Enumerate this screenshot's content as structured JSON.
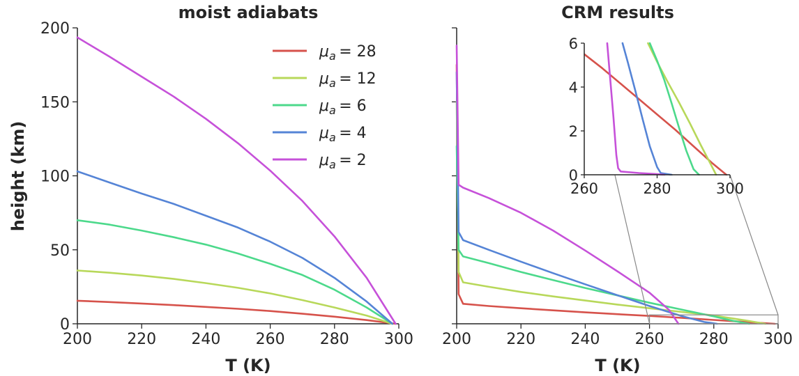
{
  "chart_data": [
    {
      "type": "line",
      "title": "moist adiabats",
      "xlabel": "T (K)",
      "ylabel": "height (km)",
      "xlim": [
        200,
        300
      ],
      "ylim": [
        0,
        200
      ],
      "xticks": [
        200,
        220,
        240,
        260,
        280,
        300
      ],
      "yticks": [
        0,
        50,
        100,
        150,
        200
      ],
      "legend_position": "top-right",
      "series": [
        {
          "name": "μa = 28",
          "legend_base": "μ",
          "legend_sub": "a",
          "legend_value": "= 28",
          "color": "#d6524b",
          "x": [
            299,
            290,
            280,
            270,
            260,
            250,
            240,
            230,
            220,
            210,
            200
          ],
          "y": [
            0,
            2.5,
            4.8,
            6.8,
            8.6,
            10.1,
            11.4,
            12.6,
            13.7,
            14.7,
            15.6
          ]
        },
        {
          "name": "μa = 12",
          "legend_base": "μ",
          "legend_sub": "a",
          "legend_value": "= 12",
          "color": "#b8d85a",
          "x": [
            298,
            290,
            280,
            270,
            260,
            250,
            240,
            230,
            220,
            210,
            200
          ],
          "y": [
            0,
            5.5,
            11,
            16,
            20.5,
            24.3,
            27.5,
            30.3,
            32.6,
            34.5,
            36
          ]
        },
        {
          "name": "μa = 6",
          "legend_base": "μ",
          "legend_sub": "a",
          "legend_value": "= 6",
          "color": "#4cd98b",
          "x": [
            298,
            290,
            280,
            270,
            260,
            250,
            240,
            230,
            220,
            210,
            200
          ],
          "y": [
            0,
            11,
            23,
            33,
            40.5,
            47.5,
            53.5,
            58.5,
            63,
            67,
            70
          ]
        },
        {
          "name": "μa = 4",
          "legend_base": "μ",
          "legend_sub": "a",
          "legend_value": "= 4",
          "color": "#5584d6",
          "x": [
            298,
            290,
            280,
            270,
            260,
            250,
            240,
            230,
            220,
            210,
            200
          ],
          "y": [
            0,
            15,
            31,
            44.5,
            55.5,
            65,
            73,
            81,
            88,
            95.5,
            103
          ]
        },
        {
          "name": "μa = 2",
          "legend_base": "μ",
          "legend_sub": "a",
          "legend_value": "= 2",
          "color": "#c651d9",
          "x": [
            299,
            290,
            280,
            270,
            260,
            250,
            240,
            230,
            220,
            210,
            200
          ],
          "y": [
            0,
            31,
            59,
            83,
            103.5,
            122,
            138.5,
            153.5,
            167,
            180.5,
            193.5
          ]
        }
      ]
    },
    {
      "type": "line",
      "title": "CRM results",
      "xlabel": "T (K)",
      "ylabel": "",
      "xlim": [
        200,
        300
      ],
      "ylim": [
        0,
        200
      ],
      "xticks": [
        200,
        220,
        240,
        260,
        280,
        300
      ],
      "yticks": [
        0,
        50,
        100,
        150,
        200
      ],
      "series": [
        {
          "name": "μa = 28",
          "color": "#d6524b",
          "x": [
            200,
            200.6,
            202,
            210,
            220,
            230,
            240,
            250,
            260,
            270,
            280,
            290,
            299
          ],
          "y": [
            175,
            20,
            13.5,
            12,
            10.5,
            9.1,
            7.7,
            6.5,
            5.3,
            4.0,
            2.6,
            1.2,
            0
          ]
        },
        {
          "name": "μa = 12",
          "color": "#b8d85a",
          "x": [
            200,
            200.6,
            202,
            210,
            220,
            230,
            240,
            250,
            260,
            270,
            280,
            290,
            296
          ],
          "y": [
            150,
            35,
            28,
            25,
            21.5,
            18.5,
            15.7,
            13,
            10.5,
            8,
            5.6,
            2.2,
            0
          ]
        },
        {
          "name": "μa = 6",
          "color": "#4cd98b",
          "x": [
            200,
            200.6,
            202,
            210,
            220,
            230,
            240,
            250,
            260,
            270,
            280,
            286,
            291
          ],
          "y": [
            120,
            50,
            45.5,
            41,
            35,
            29.5,
            24.2,
            19.2,
            14.2,
            9.6,
            5.0,
            2.0,
            0
          ]
        },
        {
          "name": "μa = 4",
          "color": "#5584d6",
          "x": [
            200,
            200.6,
            202,
            210,
            220,
            230,
            240,
            250,
            260,
            270,
            277,
            281
          ],
          "y": [
            170,
            62,
            56.5,
            50,
            42,
            34.2,
            26.7,
            19.3,
            12,
            5.2,
            1.2,
            0
          ]
        },
        {
          "name": "μa = 2",
          "color": "#c651d9",
          "x": [
            200,
            200.6,
            202,
            210,
            220,
            230,
            240,
            250,
            260,
            266,
            269
          ],
          "y": [
            188,
            94,
            92,
            85,
            75,
            63,
            49.5,
            35.5,
            21,
            9.5,
            0
          ]
        }
      ],
      "inset": {
        "xlim": [
          260,
          300
        ],
        "ylim": [
          0,
          6
        ],
        "xticks": [
          260,
          280,
          300
        ],
        "yticks": [
          0,
          2,
          4,
          6
        ],
        "series": [
          {
            "name": "μa = 28",
            "color": "#d6524b",
            "x": [
              260,
              265,
              270,
              275,
              280,
              285,
              290,
              295,
              299
            ],
            "y": [
              5.5,
              4.85,
              4.15,
              3.45,
              2.75,
              2.05,
              1.3,
              0.55,
              0
            ]
          },
          {
            "name": "μa = 12",
            "color": "#b8d85a",
            "x": [
              277.5,
              280,
              283,
              286,
              289,
              292,
              294.5,
              296.2
            ],
            "y": [
              6,
              5.15,
              4.2,
              3.3,
              2.35,
              1.35,
              0.55,
              0
            ]
          },
          {
            "name": "μa = 6",
            "color": "#4cd98b",
            "x": [
              278,
              280,
              282,
              284,
              286,
              288,
              290,
              291.5
            ],
            "y": [
              6,
              5.2,
              4.3,
              3.25,
              2.15,
              1.1,
              0.25,
              0
            ]
          },
          {
            "name": "μa = 4",
            "color": "#5584d6",
            "x": [
              270.5,
              272,
              274,
              276,
              278,
              280,
              281,
              284
            ],
            "y": [
              6,
              5.1,
              3.85,
              2.55,
              1.3,
              0.35,
              0.08,
              0
            ]
          },
          {
            "name": "μa = 2",
            "color": "#c651d9",
            "x": [
              266.3,
              267,
              268,
              268.8,
              269.3,
              270,
              275,
              280,
              282
            ],
            "y": [
              6,
              4.6,
              2.65,
              0.9,
              0.3,
              0.15,
              0.08,
              0.03,
              0
            ]
          }
        ]
      }
    }
  ]
}
